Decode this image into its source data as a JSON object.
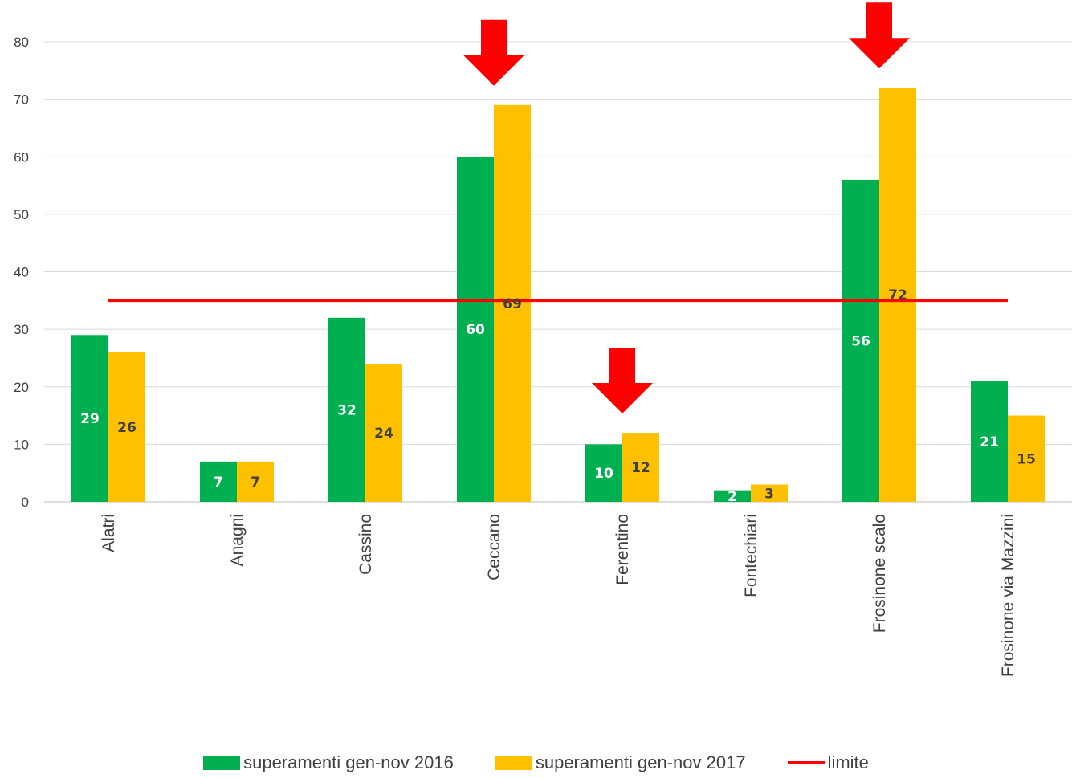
{
  "chart_data": {
    "type": "bar",
    "categories": [
      "Alatri",
      "Anagni",
      "Cassino",
      "Ceccano",
      "Ferentino",
      "Fontechiari",
      "Frosinone scalo",
      "Frosinone via Mazzini"
    ],
    "series": [
      {
        "name": "superamenti gen-nov 2016",
        "values": [
          29,
          7,
          32,
          60,
          10,
          2,
          56,
          21
        ],
        "color": "#00b050"
      },
      {
        "name": "superamenti gen-nov 2017",
        "values": [
          26,
          7,
          24,
          69,
          12,
          3,
          72,
          15
        ],
        "color": "#ffc000"
      }
    ],
    "limit": {
      "name": "limite",
      "value": 35,
      "color": "#ff0000"
    },
    "highlighted_categories": [
      "Ceccano",
      "Ferentino",
      "Frosinone scalo"
    ],
    "arrow_color": "#ff0000",
    "ylim": [
      0,
      80
    ],
    "yticks": [
      0,
      10,
      20,
      30,
      40,
      50,
      60,
      70,
      80
    ],
    "grid": true,
    "legend_position": "bottom",
    "title": "",
    "xlabel": "",
    "ylabel": ""
  }
}
